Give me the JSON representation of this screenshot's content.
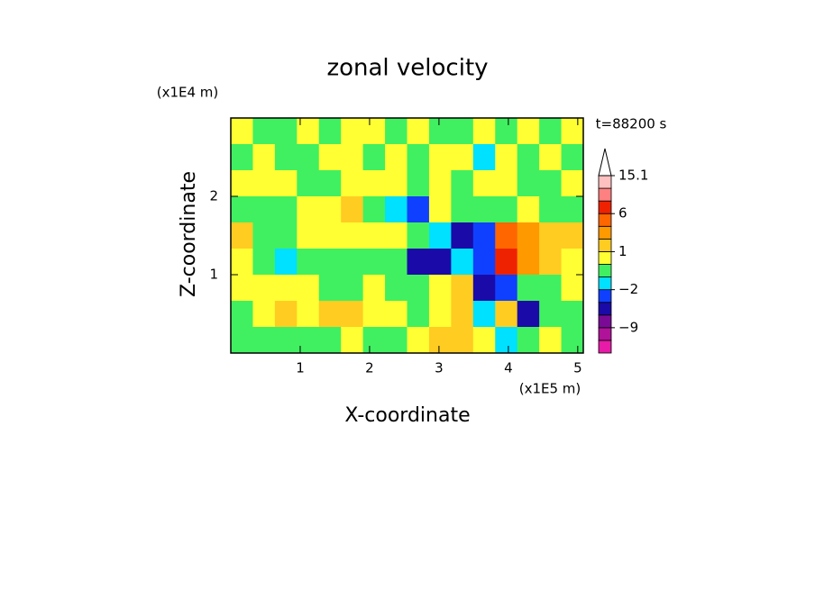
{
  "chart_data": {
    "type": "contour",
    "title": "zonal velocity",
    "x_label": "X-coordinate",
    "y_label": "Z-coordinate",
    "x_unit": "(x1E5 m)",
    "y_unit": "(x1E4 m)",
    "time_label": "t=88200 s",
    "xlim": [
      0,
      5.08
    ],
    "ylim": [
      0,
      3
    ],
    "xticks": [
      1,
      2,
      3,
      4,
      5
    ],
    "yticks": [
      1,
      2
    ],
    "field": [
      [
        0.5,
        -0.5,
        -0.5,
        0.5,
        -0.5,
        0.5,
        0.5,
        -0.5,
        0.5,
        -0.5,
        -0.5,
        0.5,
        -0.5,
        0.5,
        -0.5,
        0.5
      ],
      [
        -0.5,
        0.5,
        -0.5,
        -0.5,
        0.5,
        0.5,
        -0.5,
        0.5,
        -0.5,
        0.5,
        0.5,
        -1.5,
        0.5,
        -0.5,
        0.5,
        -0.5
      ],
      [
        0.5,
        0.5,
        0.5,
        -0.5,
        -0.5,
        0.5,
        0.5,
        0.5,
        -0.5,
        0.5,
        -0.5,
        0.5,
        0.5,
        -0.5,
        -0.5,
        0.5
      ],
      [
        -0.5,
        -0.5,
        -0.5,
        0.5,
        0.5,
        1.5,
        -0.5,
        -1.5,
        -3,
        0.5,
        -0.5,
        -0.5,
        -0.5,
        0.5,
        -0.5,
        -0.5
      ],
      [
        1.5,
        -0.5,
        -0.5,
        0.5,
        0.5,
        0.5,
        0.5,
        0.5,
        -0.5,
        -1.5,
        -5,
        -3,
        5,
        3,
        1.5,
        1.5
      ],
      [
        0.5,
        -0.5,
        -1.5,
        -0.5,
        -0.5,
        -0.5,
        -0.5,
        -0.5,
        -5,
        -5,
        -1.5,
        -3,
        7,
        3,
        1.5,
        0.5
      ],
      [
        0.5,
        0.5,
        0.5,
        0.5,
        -0.5,
        -0.5,
        0.5,
        -0.5,
        -0.5,
        0.5,
        1.5,
        -5,
        -3,
        -0.5,
        -0.5,
        0.5
      ],
      [
        -0.5,
        0.5,
        1.5,
        0.5,
        1.5,
        1.5,
        0.5,
        0.5,
        -0.5,
        0.5,
        1.5,
        -1.5,
        1.5,
        -5,
        -0.5,
        -0.5
      ],
      [
        -0.5,
        -0.5,
        -0.5,
        -0.5,
        -0.5,
        0.5,
        -0.5,
        -0.5,
        0.5,
        1.5,
        1.5,
        0.5,
        -1.5,
        -0.5,
        0.5,
        -0.5
      ]
    ],
    "colorbar": {
      "bounds": [
        -15,
        -12,
        -9,
        -6,
        -4,
        -2,
        -1,
        0,
        1,
        2,
        4,
        6,
        9,
        12,
        15.1
      ],
      "colors": [
        "#e81aa8",
        "#b0129a",
        "#7a0a96",
        "#1a0aa8",
        "#1040ff",
        "#00e0ff",
        "#40f060",
        "#ffff33",
        "#ffcc22",
        "#ff9900",
        "#ff6600",
        "#ee2200",
        "#ff8080",
        "#ffc0c0"
      ],
      "ticks": [
        15.1,
        6,
        1,
        {
          "value": -2,
          "label": "−2"
        },
        {
          "value": -9,
          "label": "−9"
        }
      ]
    }
  }
}
